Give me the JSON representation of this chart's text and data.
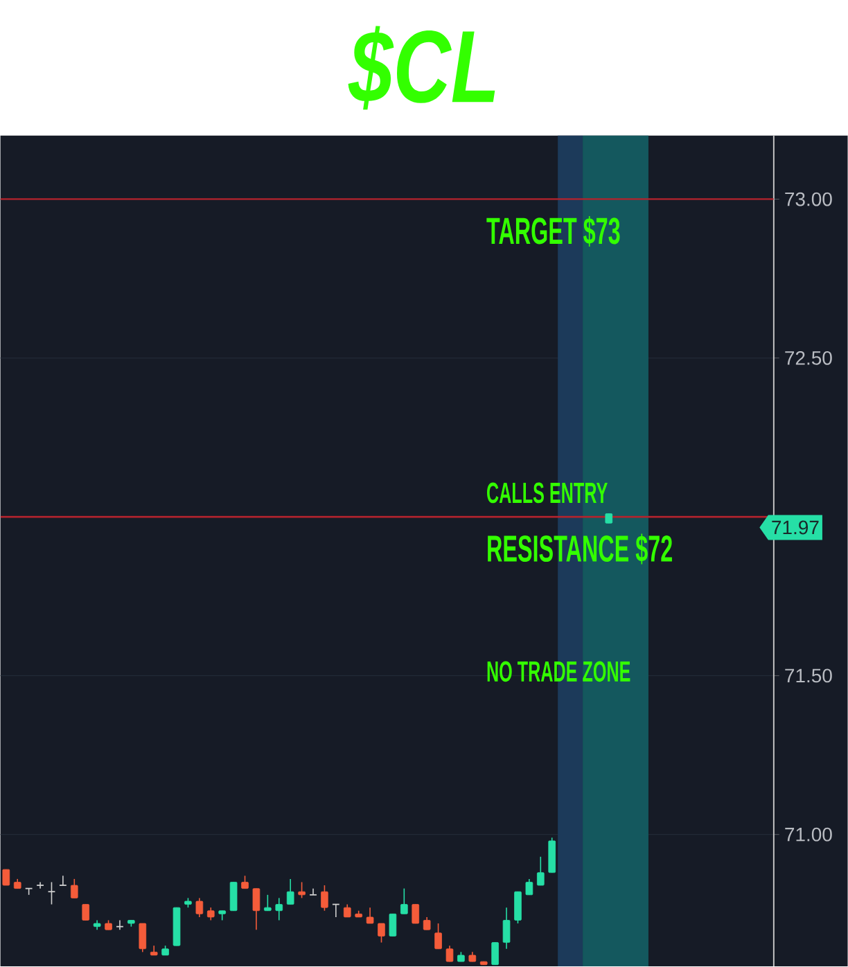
{
  "chart_data": {
    "type": "candlestick",
    "title": "$CL",
    "categories": [
      null,
      null,
      null,
      null,
      null,
      null,
      null,
      null,
      null,
      null,
      null,
      null,
      null,
      null,
      null,
      null,
      null,
      null,
      null,
      null,
      null,
      null,
      null,
      null,
      null,
      null,
      null,
      null,
      null,
      null,
      null,
      null,
      null,
      null,
      null,
      null,
      null,
      null,
      null,
      null,
      null,
      null,
      null,
      null,
      null,
      null,
      null,
      null,
      null,
      null,
      null,
      null,
      null,
      null,
      null,
      null,
      null,
      null,
      null,
      null,
      null,
      null,
      null,
      null,
      null,
      null,
      null,
      null
    ],
    "ohlc": [
      [
        70.89,
        70.89,
        70.84,
        70.84
      ],
      [
        70.85,
        70.86,
        70.83,
        70.83
      ],
      [
        70.83,
        70.83,
        70.81,
        70.83
      ],
      [
        70.84,
        70.85,
        70.83,
        70.84
      ],
      [
        70.82,
        70.85,
        70.78,
        70.82
      ],
      [
        70.84,
        70.87,
        70.84,
        70.84
      ],
      [
        70.84,
        70.86,
        70.8,
        70.8
      ],
      [
        70.78,
        70.78,
        70.73,
        70.73
      ],
      [
        70.71,
        70.73,
        70.7,
        70.72
      ],
      [
        70.72,
        70.73,
        70.7,
        70.7
      ],
      [
        70.71,
        70.73,
        70.7,
        70.71
      ],
      [
        70.72,
        70.73,
        70.71,
        70.73
      ],
      [
        70.72,
        70.72,
        70.63,
        70.64
      ],
      [
        70.63,
        70.65,
        70.62,
        70.62
      ],
      [
        70.62,
        70.65,
        70.62,
        70.64
      ],
      [
        70.65,
        70.77,
        70.65,
        70.77
      ],
      [
        70.78,
        70.8,
        70.77,
        70.79
      ],
      [
        70.79,
        70.8,
        70.74,
        70.75
      ],
      [
        70.76,
        70.77,
        70.73,
        70.74
      ],
      [
        70.75,
        70.76,
        70.73,
        70.76
      ],
      [
        70.76,
        70.85,
        70.76,
        70.85
      ],
      [
        70.85,
        70.87,
        70.83,
        70.83
      ],
      [
        70.83,
        70.83,
        70.7,
        70.76
      ],
      [
        70.76,
        70.81,
        70.76,
        70.77
      ],
      [
        70.76,
        70.8,
        70.73,
        70.78
      ],
      [
        70.78,
        70.86,
        70.78,
        70.82
      ],
      [
        70.82,
        70.85,
        70.8,
        70.81
      ],
      [
        70.81,
        70.83,
        70.81,
        70.81
      ],
      [
        70.82,
        70.84,
        70.76,
        70.77
      ],
      [
        70.78,
        70.78,
        70.74,
        70.78
      ],
      [
        70.77,
        70.78,
        70.74,
        70.74
      ],
      [
        70.75,
        70.76,
        70.74,
        70.74
      ],
      [
        70.74,
        70.77,
        70.72,
        70.72
      ],
      [
        70.72,
        70.72,
        70.66,
        70.68
      ],
      [
        70.68,
        70.75,
        70.68,
        70.75
      ],
      [
        70.75,
        70.83,
        70.75,
        70.78
      ],
      [
        70.78,
        70.78,
        70.72,
        70.72
      ],
      [
        70.73,
        70.74,
        70.7,
        70.7
      ],
      [
        70.69,
        70.72,
        70.64,
        70.64
      ],
      [
        70.64,
        70.65,
        70.6,
        70.6
      ],
      [
        70.6,
        70.63,
        70.6,
        70.62
      ],
      [
        70.62,
        70.63,
        70.6,
        70.6
      ],
      [
        70.6,
        70.6,
        70.59,
        70.59
      ],
      [
        70.59,
        70.66,
        70.59,
        70.66
      ],
      [
        70.66,
        70.77,
        70.64,
        70.73
      ],
      [
        70.73,
        70.82,
        70.72,
        70.82
      ],
      [
        70.81,
        70.86,
        70.81,
        70.85
      ],
      [
        70.84,
        70.93,
        70.84,
        70.88
      ],
      [
        70.88,
        70.99,
        70.88,
        70.98
      ],
      null,
      null,
      null,
      null,
      [
        71.98,
        72.01,
        71.98,
        72.01
      ],
      null,
      null,
      null,
      null,
      null,
      null,
      null,
      null,
      null,
      null,
      null,
      null,
      null,
      null
    ],
    "colors": [
      "#f45c3a",
      "#f45c3a",
      "#d0d0d0",
      "#d0d0d0",
      "#d0d0d0",
      "#d0d0d0",
      "#f45c3a",
      "#f45c3a",
      "#26dfa6",
      "#f45c3a",
      "#d0d0d0",
      "#26dfa6",
      "#f45c3a",
      "#f45c3a",
      "#26dfa6",
      "#26dfa6",
      "#26dfa6",
      "#f45c3a",
      "#f45c3a",
      "#26dfa6",
      "#26dfa6",
      "#f45c3a",
      "#f45c3a",
      "#26dfa6",
      "#26dfa6",
      "#26dfa6",
      "#f45c3a",
      "#d0d0d0",
      "#f45c3a",
      "#d0d0d0",
      "#f45c3a",
      "#f45c3a",
      "#f45c3a",
      "#f45c3a",
      "#26dfa6",
      "#26dfa6",
      "#f45c3a",
      "#f45c3a",
      "#f45c3a",
      "#f45c3a",
      "#26dfa6",
      "#f45c3a",
      "#f45c3a",
      "#26dfa6",
      "#26dfa6",
      "#26dfa6",
      "#26dfa6",
      "#26dfa6",
      "#26dfa6",
      null,
      null,
      null,
      null,
      "#26dfa6",
      null,
      null,
      null,
      null,
      null,
      null,
      null,
      null,
      null,
      null,
      null,
      null,
      null,
      null
    ],
    "ylim": [
      70.585,
      73.2
    ],
    "yticks": [
      {
        "value": 71,
        "label": "71.00"
      },
      {
        "value": 71.5,
        "label": "71.50"
      },
      {
        "value": 72.5,
        "label": "72.50"
      },
      {
        "value": 73,
        "label": "73.00"
      }
    ],
    "grid": "y",
    "tick_labels": "y",
    "ref_lines": [
      {
        "axis": "y",
        "value": 73,
        "label": "TARGET $73",
        "color": "#b3232d"
      },
      {
        "axis": "y",
        "value": 72,
        "label": "RESISTANCE $72",
        "color": "#b3232d"
      }
    ],
    "annotations": [
      "CALLS ENTRY",
      "NO TRADE ZONE",
      "71.97"
    ]
  }
}
